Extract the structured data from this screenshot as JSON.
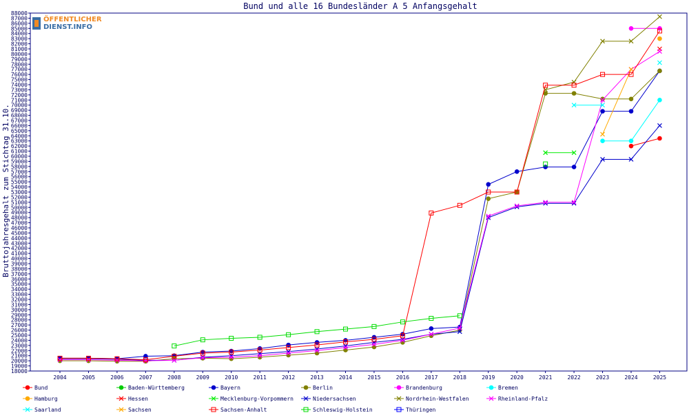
{
  "chart_data": {
    "type": "line",
    "title": "Bund und alle 16 Bundesländer A 5 Anfangsgehalt",
    "ylabel": "Bruttojahresgehalt zum Stichtag 31.10.",
    "xlabel": "",
    "ylim": [
      18000,
      88000
    ],
    "y_tick_step": 1000,
    "grid": false,
    "legend_position": "bottom",
    "categories": [
      "2004",
      "2005",
      "2006",
      "2007",
      "2008",
      "2009",
      "2010",
      "2011",
      "2012",
      "2013",
      "2014",
      "2015",
      "2016",
      "2017",
      "2018",
      "2019",
      "2020",
      "2021",
      "2022",
      "2023",
      "2024",
      "2025"
    ],
    "series": [
      {
        "name": "Bund",
        "color": "#ff0000",
        "marker": "dot",
        "values": [
          null,
          null,
          null,
          null,
          null,
          null,
          null,
          null,
          null,
          null,
          null,
          null,
          null,
          null,
          null,
          null,
          null,
          null,
          null,
          null,
          62000,
          63500
        ]
      },
      {
        "name": "Baden-Württemberg",
        "color": "#00cc00",
        "marker": "dot",
        "values": [
          null,
          null,
          null,
          null,
          null,
          null,
          null,
          null,
          null,
          null,
          null,
          null,
          null,
          null,
          null,
          null,
          null,
          null,
          null,
          null,
          null,
          null
        ]
      },
      {
        "name": "Bayern",
        "color": "#0000cc",
        "marker": "dot",
        "values": [
          20500,
          20500,
          20400,
          20900,
          21000,
          21700,
          21900,
          22400,
          23100,
          23600,
          24000,
          24600,
          25200,
          26300,
          26600,
          54500,
          57000,
          57900,
          57900,
          68800,
          68800,
          76700
        ]
      },
      {
        "name": "Berlin",
        "color": "#808000",
        "marker": "dot",
        "values": [
          20000,
          20000,
          19900,
          19900,
          20400,
          20500,
          20400,
          20700,
          21100,
          21500,
          22100,
          22700,
          23600,
          24900,
          26000,
          51700,
          53000,
          72300,
          72300,
          71200,
          71200,
          76700
        ]
      },
      {
        "name": "Brandenburg",
        "color": "#ff00ff",
        "marker": "dot",
        "values": [
          null,
          null,
          null,
          null,
          null,
          null,
          null,
          null,
          null,
          null,
          null,
          null,
          null,
          null,
          null,
          null,
          null,
          null,
          null,
          null,
          85000,
          85000
        ]
      },
      {
        "name": "Bremen",
        "color": "#00ffff",
        "marker": "dot",
        "values": [
          null,
          null,
          null,
          null,
          null,
          null,
          null,
          null,
          null,
          null,
          null,
          null,
          null,
          null,
          null,
          null,
          null,
          null,
          null,
          63000,
          63000,
          71000
        ]
      },
      {
        "name": "Hamburg",
        "color": "#ffaa00",
        "marker": "dot",
        "values": [
          null,
          null,
          null,
          null,
          null,
          null,
          null,
          null,
          null,
          null,
          null,
          null,
          null,
          null,
          null,
          null,
          null,
          null,
          null,
          null,
          null,
          83000
        ]
      },
      {
        "name": "Hessen",
        "color": "#ff0000",
        "marker": "x",
        "values": [
          null,
          null,
          null,
          null,
          null,
          null,
          null,
          null,
          null,
          null,
          null,
          null,
          null,
          null,
          null,
          null,
          null,
          null,
          null,
          null,
          null,
          81000
        ]
      },
      {
        "name": "Mecklenburg-Vorpommern",
        "color": "#00ee00",
        "marker": "x",
        "values": [
          null,
          null,
          null,
          null,
          null,
          null,
          null,
          null,
          null,
          null,
          null,
          null,
          null,
          null,
          null,
          null,
          null,
          60700,
          60700,
          null,
          null,
          null
        ]
      },
      {
        "name": "Niedersachsen",
        "color": "#0000cc",
        "marker": "x",
        "values": [
          20400,
          20400,
          20300,
          20100,
          20100,
          20700,
          21000,
          21400,
          21800,
          22300,
          22900,
          23600,
          24200,
          25200,
          25700,
          48000,
          50100,
          50800,
          50800,
          59400,
          59400,
          66000
        ]
      },
      {
        "name": "Nordrhein-Westfalen",
        "color": "#808000",
        "marker": "x",
        "values": [
          null,
          null,
          null,
          null,
          null,
          null,
          null,
          null,
          null,
          null,
          null,
          null,
          null,
          null,
          null,
          null,
          null,
          73000,
          74500,
          82500,
          82500,
          87300
        ]
      },
      {
        "name": "Rheinland-Pfalz",
        "color": "#ff00ff",
        "marker": "x",
        "values": [
          20200,
          20200,
          20100,
          20000,
          20100,
          20600,
          20700,
          21000,
          21500,
          22000,
          22600,
          23200,
          24000,
          25200,
          26400,
          48300,
          50300,
          51000,
          51000,
          71000,
          77000,
          80500
        ]
      },
      {
        "name": "Saarland",
        "color": "#00ffff",
        "marker": "x",
        "values": [
          null,
          null,
          null,
          null,
          null,
          null,
          null,
          null,
          null,
          null,
          null,
          null,
          null,
          null,
          null,
          null,
          null,
          null,
          70000,
          70000,
          null,
          78300
        ]
      },
      {
        "name": "Sachsen",
        "color": "#ffaa00",
        "marker": "x",
        "values": [
          null,
          null,
          null,
          null,
          null,
          null,
          null,
          null,
          null,
          null,
          null,
          null,
          null,
          null,
          null,
          null,
          null,
          null,
          null,
          64300,
          77000,
          null
        ]
      },
      {
        "name": "Sachsen-Anhalt",
        "color": "#ff0000",
        "marker": "square",
        "values": [
          20500,
          20500,
          20400,
          20200,
          20900,
          21500,
          21700,
          22100,
          22600,
          23100,
          23700,
          24200,
          24900,
          48900,
          50400,
          53000,
          53000,
          73900,
          73900,
          76000,
          76000,
          84500
        ]
      },
      {
        "name": "Schleswig-Holstein",
        "color": "#00dd00",
        "marker": "square",
        "values": [
          null,
          null,
          null,
          null,
          22900,
          24100,
          24400,
          24600,
          25100,
          25700,
          26200,
          26700,
          27600,
          28300,
          28800,
          null,
          null,
          58500,
          null,
          null,
          null,
          null
        ]
      },
      {
        "name": "Thüringen",
        "color": "#0000ff",
        "marker": "square",
        "values": [
          null,
          null,
          null,
          null,
          null,
          null,
          null,
          null,
          null,
          null,
          null,
          null,
          null,
          null,
          null,
          null,
          null,
          null,
          null,
          null,
          null,
          null
        ]
      }
    ]
  },
  "logo": {
    "line1": "ÖFFENTLICHER",
    "line2": "DIENST.INFO"
  }
}
